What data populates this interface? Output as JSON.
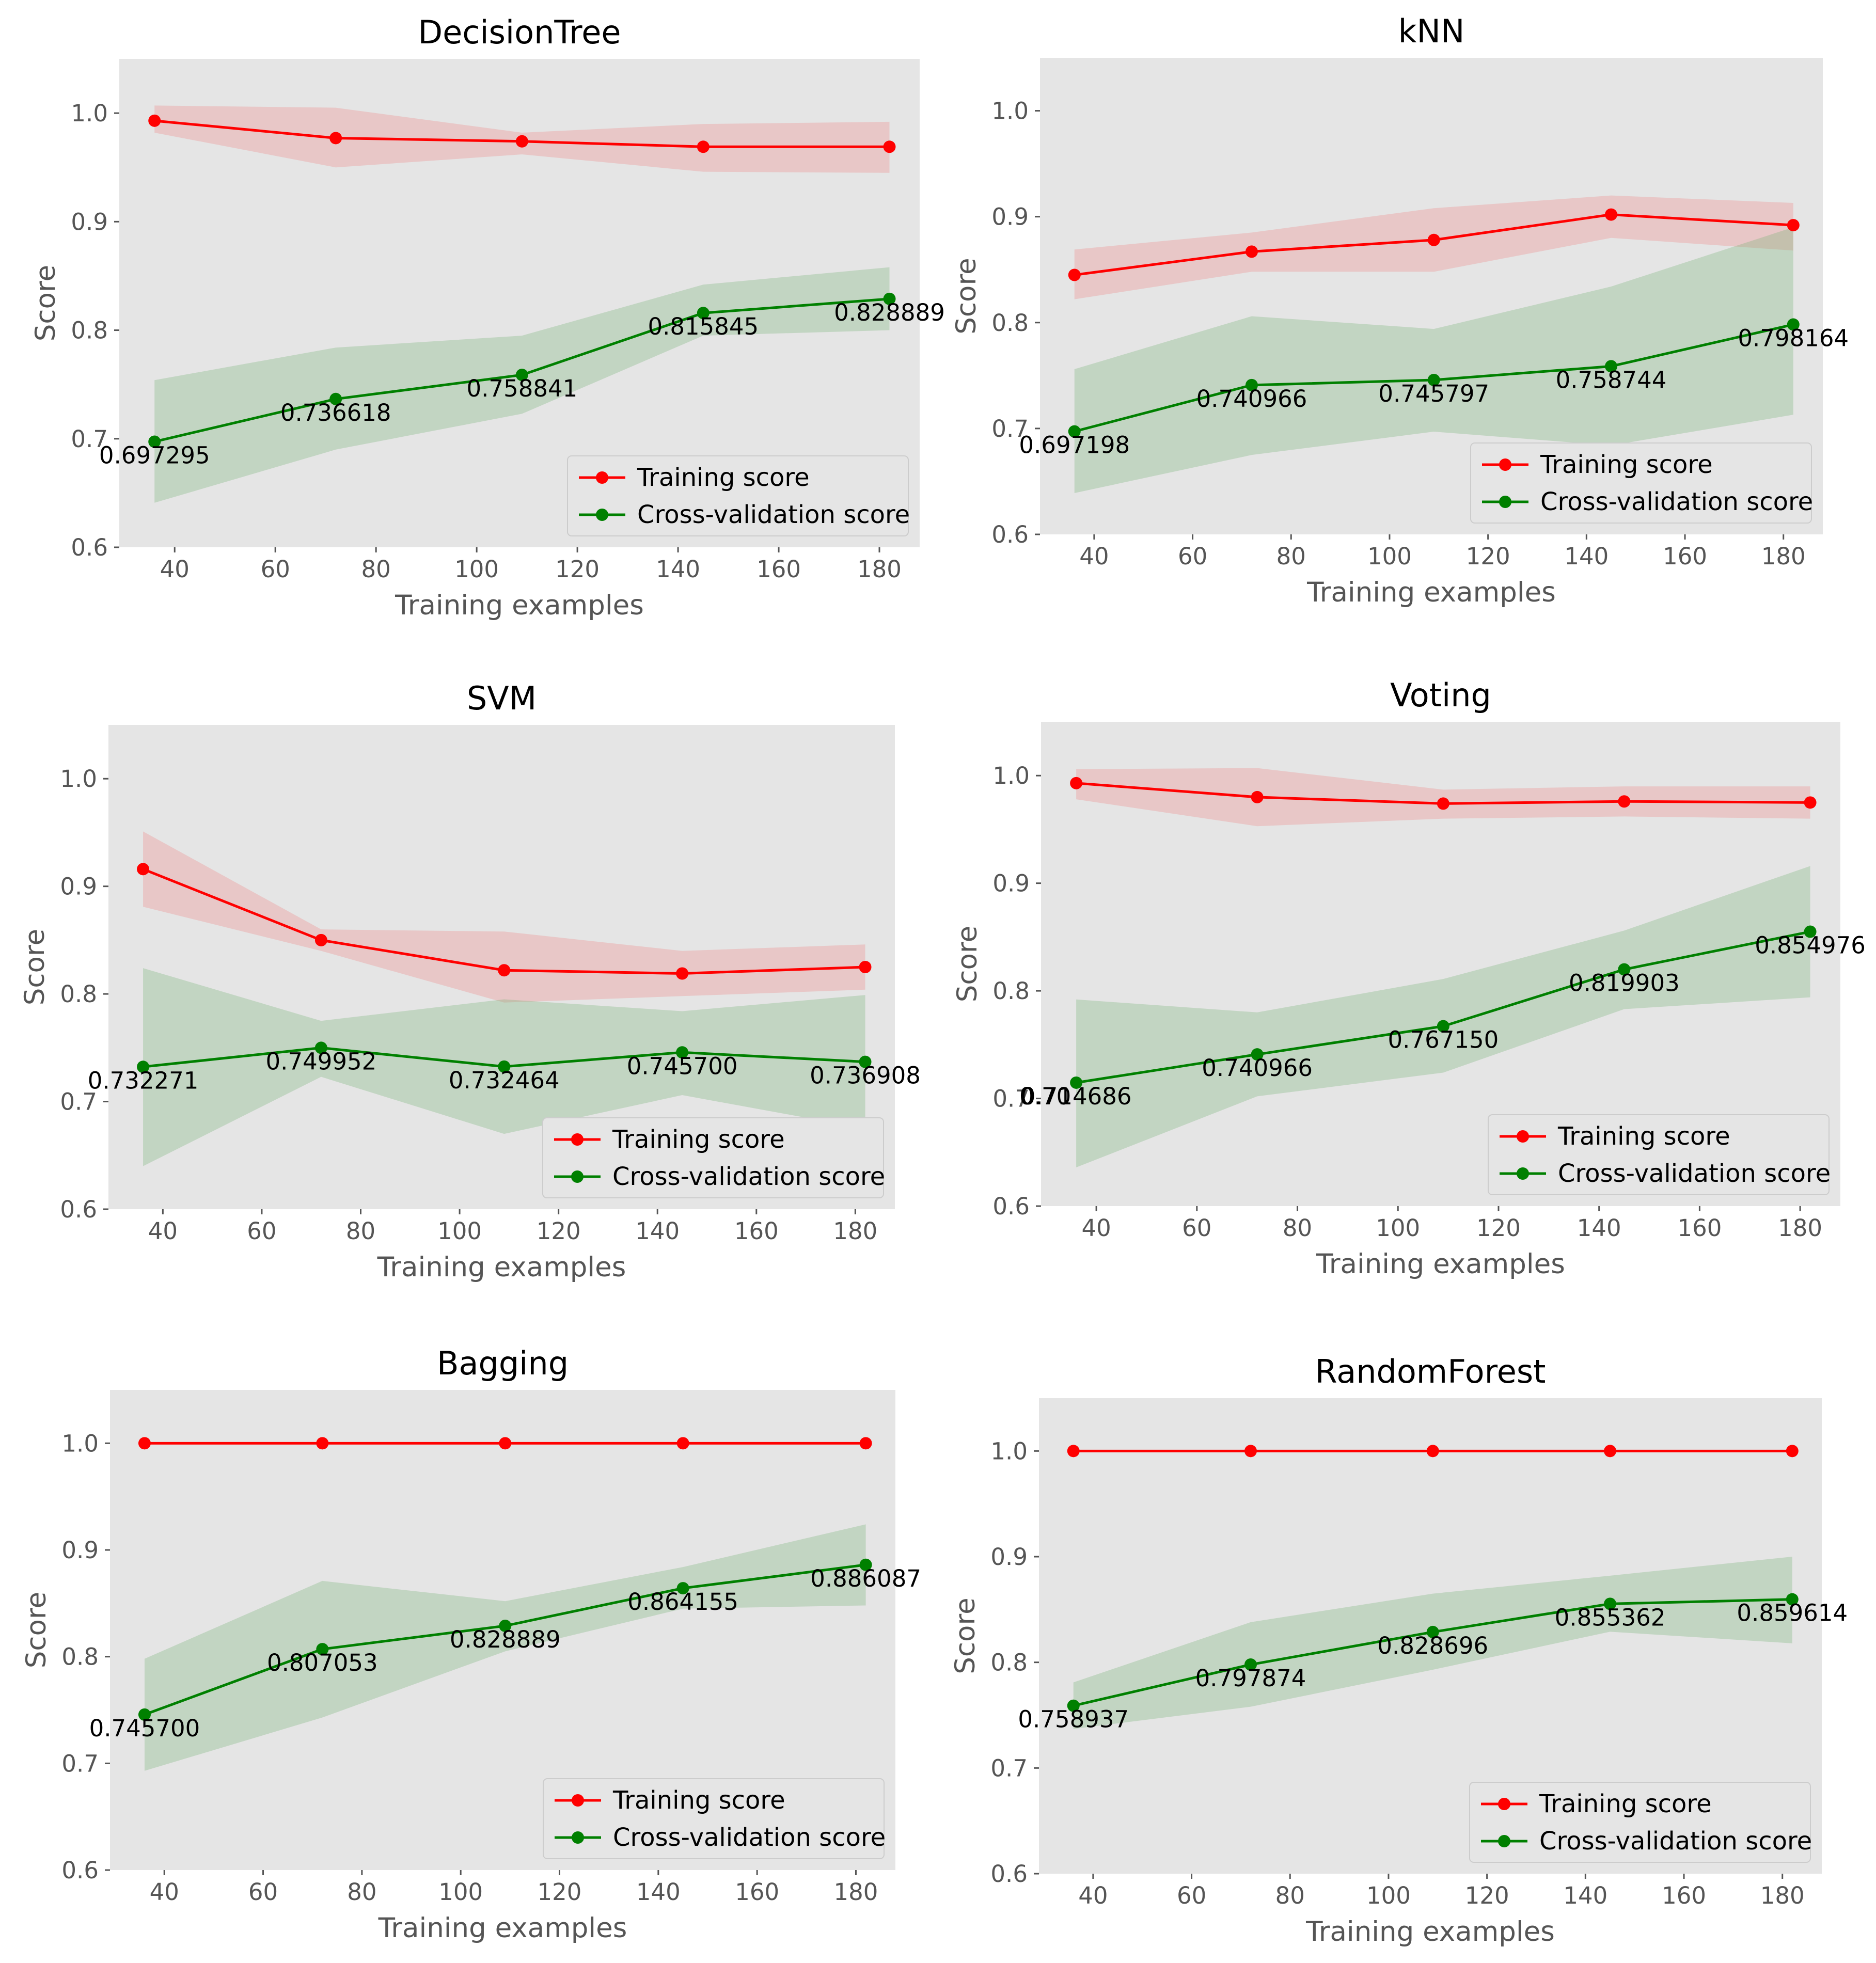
{
  "figure": {
    "colors": {
      "plot_bg": "#e5e5e5",
      "grid": "#ffffff",
      "training": "#ff0000",
      "training_band": "#f08080",
      "cv": "#008000",
      "cv_band": "#6fae6f"
    }
  },
  "chart_data": [
    {
      "type": "line",
      "title": "DecisionTree",
      "xlabel": "Training examples",
      "ylabel": "Score",
      "xlim": [
        29,
        188
      ],
      "ylim": [
        0.6,
        1.05
      ],
      "xticks": [
        40,
        60,
        80,
        100,
        120,
        140,
        160,
        180
      ],
      "yticks": [
        0.6,
        0.7,
        0.8,
        0.9,
        1.0
      ],
      "ytick_labels": [
        "0.6",
        "0.7",
        "0.8",
        "0.9",
        "1.0"
      ],
      "x": [
        36,
        72,
        109,
        145,
        182
      ],
      "series": [
        {
          "name": "Training score",
          "values": [
            0.993,
            0.977,
            0.974,
            0.969,
            0.969
          ],
          "band_low": [
            0.982,
            0.95,
            0.962,
            0.946,
            0.945
          ],
          "band_high": [
            1.007,
            1.005,
            0.982,
            0.99,
            0.992
          ]
        },
        {
          "name": "Cross-validation score",
          "values": [
            0.697295,
            0.736618,
            0.758841,
            0.815845,
            0.828889
          ],
          "band_low": [
            0.641,
            0.69,
            0.723,
            0.795,
            0.8
          ],
          "band_high": [
            0.754,
            0.784,
            0.795,
            0.842,
            0.858
          ]
        }
      ],
      "annotations": [
        "0.697295",
        "0.736618",
        "0.758841",
        "0.815845",
        "0.828889"
      ],
      "legend_entries": [
        "Training score",
        "Cross-validation score"
      ]
    },
    {
      "type": "line",
      "title": "kNN",
      "xlabel": "Training examples",
      "ylabel": "Score",
      "xlim": [
        29,
        188
      ],
      "ylim": [
        0.6,
        1.05
      ],
      "xticks": [
        40,
        60,
        80,
        100,
        120,
        140,
        160,
        180
      ],
      "yticks": [
        0.6,
        0.7,
        0.8,
        0.9,
        1.0
      ],
      "ytick_labels": [
        "0.6",
        "0.7",
        "0.8",
        "0.9",
        "1.0"
      ],
      "x": [
        36,
        72,
        109,
        145,
        182
      ],
      "series": [
        {
          "name": "Training score",
          "values": [
            0.845,
            0.867,
            0.878,
            0.902,
            0.892
          ],
          "band_low": [
            0.822,
            0.848,
            0.848,
            0.88,
            0.868
          ],
          "band_high": [
            0.869,
            0.885,
            0.908,
            0.92,
            0.913
          ]
        },
        {
          "name": "Cross-validation score",
          "values": [
            0.697198,
            0.740966,
            0.745797,
            0.758744,
            0.798164
          ],
          "band_low": [
            0.639,
            0.675,
            0.697,
            0.684,
            0.713
          ],
          "band_high": [
            0.756,
            0.806,
            0.794,
            0.834,
            0.89
          ]
        }
      ],
      "annotations": [
        "0.697198",
        "0.740966",
        "0.745797",
        "0.758744",
        "0.798164"
      ],
      "legend_entries": [
        "Training score",
        "Cross-validation score"
      ]
    },
    {
      "type": "line",
      "title": "SVM",
      "xlabel": "Training examples",
      "ylabel": "Score",
      "xlim": [
        29,
        188
      ],
      "ylim": [
        0.6,
        1.05
      ],
      "xticks": [
        40,
        60,
        80,
        100,
        120,
        140,
        160,
        180
      ],
      "yticks": [
        0.6,
        0.7,
        0.8,
        0.9,
        1.0
      ],
      "ytick_labels": [
        "0.6",
        "0.7",
        "0.8",
        "0.9",
        "1.0"
      ],
      "x": [
        36,
        72,
        109,
        145,
        182
      ],
      "series": [
        {
          "name": "Training score",
          "values": [
            0.916,
            0.85,
            0.822,
            0.819,
            0.825
          ],
          "band_low": [
            0.881,
            0.84,
            0.792,
            0.798,
            0.804
          ],
          "band_high": [
            0.951,
            0.86,
            0.858,
            0.84,
            0.846
          ]
        },
        {
          "name": "Cross-validation score",
          "values": [
            0.732271,
            0.749952,
            0.732464,
            0.7457,
            0.736908
          ],
          "band_low": [
            0.64,
            0.723,
            0.67,
            0.706,
            0.675
          ],
          "band_high": [
            0.824,
            0.775,
            0.795,
            0.784,
            0.799
          ]
        }
      ],
      "annotations": [
        "0.732271",
        "0.749952",
        "0.732464",
        "0.745700",
        "0.736908"
      ],
      "legend_entries": [
        "Training score",
        "Cross-validation score"
      ]
    },
    {
      "type": "line",
      "title": "Voting",
      "xlabel": "Training examples",
      "ylabel": "Score",
      "xlim": [
        29,
        188
      ],
      "ylim": [
        0.6,
        1.05
      ],
      "xticks": [
        40,
        60,
        80,
        100,
        120,
        140,
        160,
        180
      ],
      "yticks": [
        0.6,
        0.7,
        0.8,
        0.9,
        1.0
      ],
      "ytick_labels": [
        "0.6",
        "0.7",
        "0.8",
        "0.9",
        "1.0"
      ],
      "x": [
        36,
        72,
        109,
        145,
        182
      ],
      "series": [
        {
          "name": "Training score",
          "values": [
            0.993,
            0.98,
            0.974,
            0.976,
            0.975
          ],
          "band_low": [
            0.978,
            0.953,
            0.96,
            0.962,
            0.96
          ],
          "band_high": [
            1.006,
            1.007,
            0.987,
            0.99,
            0.99
          ]
        },
        {
          "name": "Cross-validation score",
          "values": [
            0.714686,
            0.740966,
            0.76715,
            0.819903,
            0.854976
          ],
          "band_low": [
            0.636,
            0.702,
            0.724,
            0.783,
            0.794
          ],
          "band_high": [
            0.792,
            0.78,
            0.811,
            0.856,
            0.916
          ]
        }
      ],
      "annotations": [
        "0.70",
        "0.714686",
        "0.740966",
        "0.767150",
        "0.819903",
        "0.854976"
      ],
      "legend_entries": [
        "Training score",
        "Cross-validation score"
      ]
    },
    {
      "type": "line",
      "title": "Bagging",
      "xlabel": "Training examples",
      "ylabel": "Score",
      "xlim": [
        29,
        188
      ],
      "ylim": [
        0.6,
        1.05
      ],
      "xticks": [
        40,
        60,
        80,
        100,
        120,
        140,
        160,
        180
      ],
      "yticks": [
        0.6,
        0.7,
        0.8,
        0.9,
        1.0
      ],
      "ytick_labels": [
        "0.6",
        "0.7",
        "0.8",
        "0.9",
        "1.0"
      ],
      "x": [
        36,
        72,
        109,
        145,
        182
      ],
      "series": [
        {
          "name": "Training score",
          "values": [
            1.0,
            1.0,
            1.0,
            1.0,
            1.0
          ],
          "band_low": [
            1.0,
            1.0,
            1.0,
            1.0,
            1.0
          ],
          "band_high": [
            1.0,
            1.0,
            1.0,
            1.0,
            1.0
          ]
        },
        {
          "name": "Cross-validation score",
          "values": [
            0.7457,
            0.807053,
            0.828889,
            0.864155,
            0.886087
          ],
          "band_low": [
            0.693,
            0.743,
            0.805,
            0.845,
            0.848
          ],
          "band_high": [
            0.798,
            0.871,
            0.852,
            0.884,
            0.924
          ]
        }
      ],
      "annotations": [
        "0.745700",
        "0.807053",
        "0.828889",
        "0.864155",
        "0.886087"
      ],
      "legend_entries": [
        "Training score",
        "Cross-validation score"
      ]
    },
    {
      "type": "line",
      "title": "RandomForest",
      "xlabel": "Training examples",
      "ylabel": "Score",
      "xlim": [
        29,
        188
      ],
      "ylim": [
        0.6,
        1.05
      ],
      "xticks": [
        40,
        60,
        80,
        100,
        120,
        140,
        160,
        180
      ],
      "yticks": [
        0.6,
        0.7,
        0.8,
        0.9,
        1.0
      ],
      "ytick_labels": [
        "0.6",
        "0.7",
        "0.8",
        "0.9",
        "1.0"
      ],
      "x": [
        36,
        72,
        109,
        145,
        182
      ],
      "series": [
        {
          "name": "Training score",
          "values": [
            1.0,
            1.0,
            1.0,
            1.0,
            1.0
          ],
          "band_low": [
            1.0,
            1.0,
            1.0,
            1.0,
            1.0
          ],
          "band_high": [
            1.0,
            1.0,
            1.0,
            1.0,
            1.0
          ]
        },
        {
          "name": "Cross-validation score",
          "values": [
            0.758937,
            0.797874,
            0.828696,
            0.855362,
            0.859614
          ],
          "band_low": [
            0.737,
            0.758,
            0.793,
            0.829,
            0.818
          ],
          "band_high": [
            0.781,
            0.838,
            0.865,
            0.882,
            0.9
          ]
        }
      ],
      "annotations": [
        "0.758937",
        "0.797874",
        "0.828696",
        "0.855362",
        "0.859614"
      ],
      "legend_entries": [
        "Training score",
        "Cross-validation score"
      ]
    }
  ]
}
